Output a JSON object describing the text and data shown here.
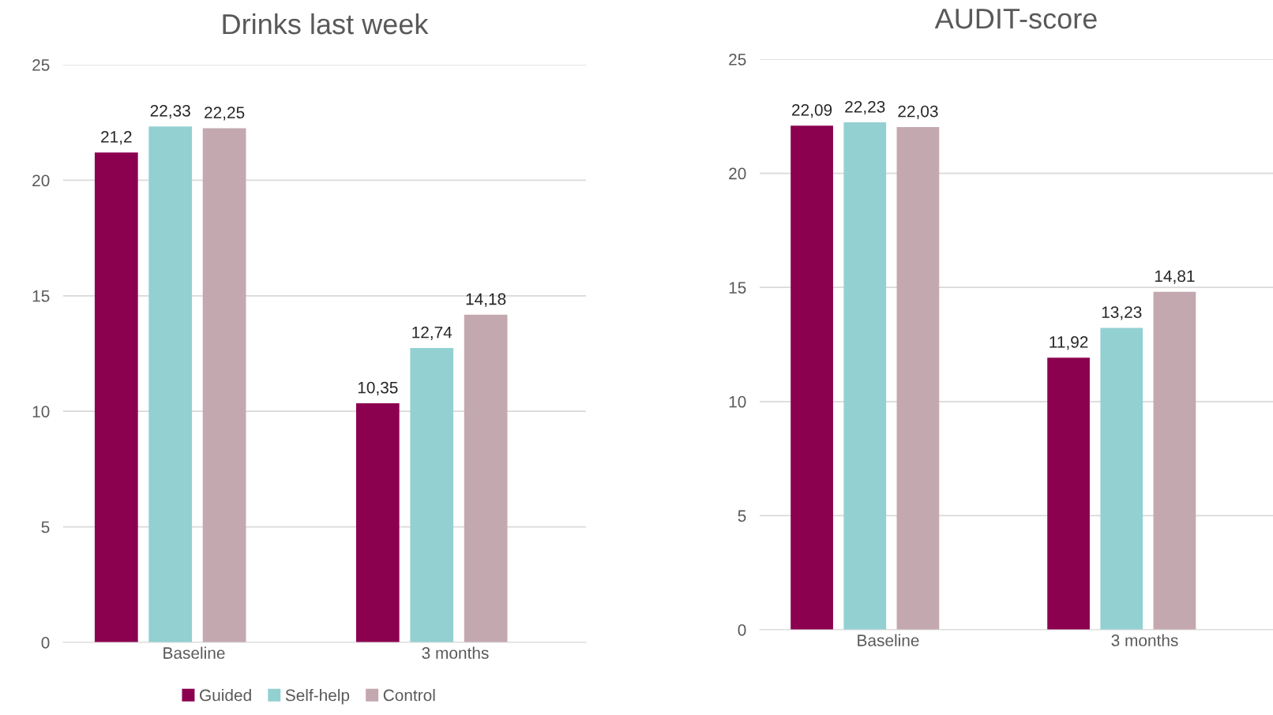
{
  "chart_data": [
    {
      "type": "bar",
      "title": "Drinks last week",
      "categories": [
        "Baseline",
        "3 months"
      ],
      "series": [
        {
          "name": "Guided",
          "color": "#8b004f",
          "values": [
            21.2,
            10.35
          ],
          "value_labels": [
            "21,2",
            "10,35"
          ]
        },
        {
          "name": "Self-help",
          "color": "#93d0d2",
          "values": [
            22.33,
            12.74
          ],
          "value_labels": [
            "22,33",
            "12,74"
          ]
        },
        {
          "name": "Control",
          "color": "#c4a8b0",
          "values": [
            22.25,
            14.18
          ],
          "value_labels": [
            "22,25",
            "14,18"
          ]
        }
      ],
      "ylim": [
        0,
        25
      ],
      "yticks": [
        0,
        5,
        10,
        15,
        20,
        25
      ],
      "grid": "y",
      "legend": "bottom"
    },
    {
      "type": "bar",
      "title": "AUDIT-score",
      "categories": [
        "Baseline",
        "3 months"
      ],
      "series": [
        {
          "color": "#8b004f",
          "values": [
            22.09,
            11.92
          ],
          "value_labels": [
            "22,09",
            "11,92"
          ]
        },
        {
          "color": "#93d0d2",
          "values": [
            22.23,
            13.23
          ],
          "value_labels": [
            "22,23",
            "13,23"
          ]
        },
        {
          "color": "#c4a8b0",
          "values": [
            22.03,
            14.81
          ],
          "value_labels": [
            "22,03",
            "14,81"
          ]
        }
      ],
      "ylim": [
        0,
        25
      ],
      "yticks": [
        0,
        5,
        10,
        15,
        20,
        25
      ],
      "grid": "y",
      "legend": false
    }
  ]
}
